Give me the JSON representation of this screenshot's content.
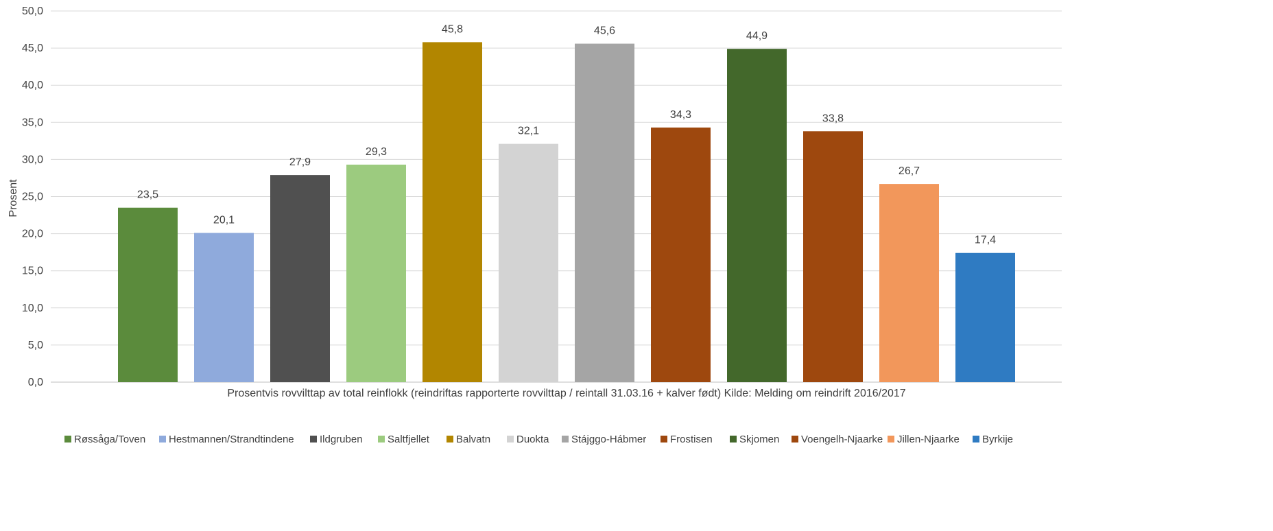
{
  "chart_data": {
    "type": "bar",
    "title": "",
    "xlabel": "Prosentvis rovvilttap av total reinflokk (reindriftas rapporterte rovvilttap / reintall 31.03.16 + kalver født) Kilde: Melding om reindrift 2016/2017",
    "ylabel": "Prosent",
    "ylim": [
      0,
      50
    ],
    "ytick_labels": [
      "0,0",
      "5,0",
      "10,0",
      "15,0",
      "20,0",
      "25,0",
      "30,0",
      "35,0",
      "40,0",
      "45,0",
      "50,0"
    ],
    "grid": true,
    "legend_position": "bottom",
    "categories": [
      "Røssåga/Toven",
      "Hestmannen/Strandtindene",
      "Ildgruben",
      "Saltfjellet",
      "Balvatn",
      "Duokta",
      "Stájggo-Hábmer",
      "Frostisen",
      "Skjomen",
      "Voengelh-Njaarke",
      "Jillen-Njaarke",
      "Byrkije"
    ],
    "values": [
      23.5,
      20.1,
      27.9,
      29.3,
      45.8,
      32.1,
      45.6,
      34.3,
      44.9,
      33.8,
      26.7,
      17.4
    ],
    "value_labels": [
      "23,5",
      "20,1",
      "27,9",
      "29,3",
      "45,8",
      "32,1",
      "45,6",
      "34,3",
      "44,9",
      "33,8",
      "26,7",
      "17,4"
    ],
    "colors": [
      "#5b8b3c",
      "#8faadc",
      "#505050",
      "#9ccb7f",
      "#b28600",
      "#d3d3d3",
      "#a5a5a5",
      "#9e480e",
      "#43682b",
      "#9e480e",
      "#f2975b",
      "#2f7bc2"
    ]
  }
}
